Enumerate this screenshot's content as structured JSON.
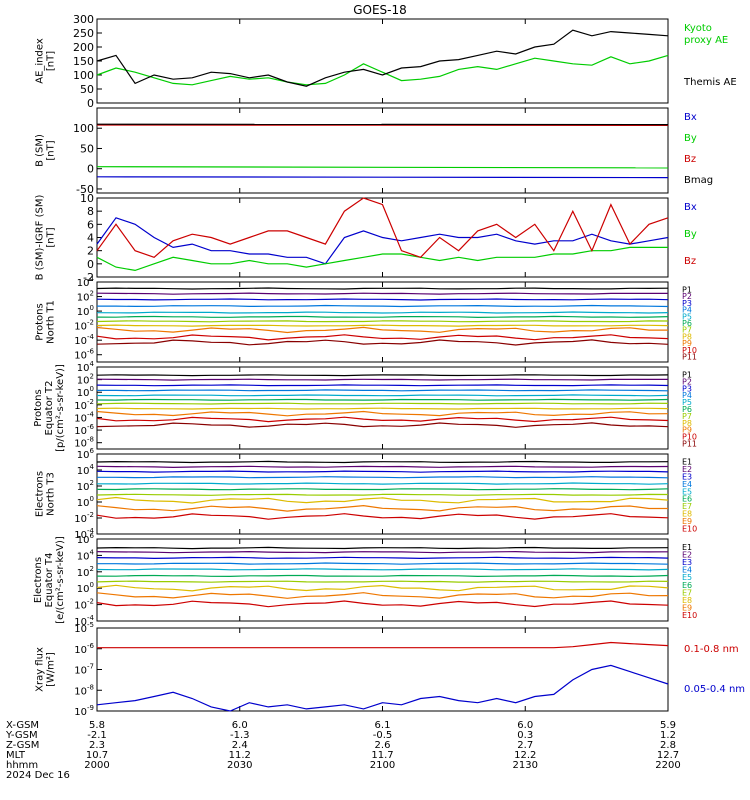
{
  "title": "GOES-18",
  "x_axis": {
    "ticks": [
      "2000",
      "2030",
      "2100",
      "2130",
      "2200"
    ],
    "rows": [
      {
        "label": "X-GSM",
        "values": [
          "5.8",
          "6.0",
          "6.1",
          "6.0",
          "5.9"
        ]
      },
      {
        "label": "Y-GSM",
        "values": [
          "-2.1",
          "-1.3",
          "-0.5",
          "0.3",
          "1.2"
        ]
      },
      {
        "label": "Z-GSM",
        "values": [
          "2.3",
          "2.4",
          "2.6",
          "2.7",
          "2.8"
        ]
      },
      {
        "label": "MLT",
        "values": [
          "10.7",
          "11.2",
          "11.7",
          "12.2",
          "12.7"
        ]
      },
      {
        "label": "hhmm",
        "values": [
          "2000",
          "2030",
          "2100",
          "2130",
          "2200"
        ]
      }
    ],
    "date": "2024 Dec 16"
  },
  "chart_data": [
    {
      "type": "line",
      "ylabel": [
        "AE_index",
        "[nT]"
      ],
      "ylim": [
        0,
        300
      ],
      "yticks": [
        "0",
        "50",
        "100",
        "150",
        "200",
        "250",
        "300"
      ],
      "x_minutes": [
        0,
        4,
        8,
        12,
        16,
        20,
        24,
        28,
        32,
        36,
        40,
        44,
        48,
        52,
        56,
        60,
        64,
        68,
        72,
        76,
        80,
        84,
        88,
        92,
        96,
        100,
        104,
        108,
        112,
        116,
        120
      ],
      "series": [
        {
          "name": "Kyoto proxy AE",
          "color": "#00cc00",
          "label_lines": [
            "Kyoto",
            "proxy AE"
          ],
          "values": [
            100,
            125,
            110,
            90,
            70,
            65,
            80,
            95,
            85,
            90,
            75,
            65,
            70,
            100,
            140,
            110,
            80,
            85,
            95,
            120,
            130,
            120,
            140,
            160,
            150,
            140,
            135,
            165,
            140,
            150,
            170
          ]
        },
        {
          "name": "Themis AE",
          "color": "#000000",
          "label_lines": [
            "Themis AE"
          ],
          "values": [
            150,
            170,
            70,
            100,
            85,
            90,
            110,
            105,
            90,
            100,
            75,
            60,
            90,
            110,
            120,
            100,
            125,
            130,
            150,
            155,
            170,
            185,
            175,
            200,
            210,
            260,
            240,
            255,
            250,
            245,
            240
          ]
        }
      ]
    },
    {
      "type": "line",
      "ylabel": [
        "B (SM)",
        "[nT]"
      ],
      "ylim": [
        -60,
        150
      ],
      "yticks": [
        "-50",
        "0",
        "50",
        "100"
      ],
      "yticks_values": [
        -50,
        0,
        50,
        100
      ],
      "x_minutes": [
        0,
        120
      ],
      "series": [
        {
          "name": "Bx",
          "color": "#0000cc",
          "values": [
            -20,
            -22
          ]
        },
        {
          "name": "By",
          "color": "#00cc00",
          "values": [
            5,
            2
          ]
        },
        {
          "name": "Bz",
          "color": "#cc0000",
          "values": [
            108,
            107
          ]
        },
        {
          "name": "Bmag",
          "color": "#000000",
          "values": [
            110,
            109
          ]
        }
      ]
    },
    {
      "type": "line",
      "ylabel": [
        "B (SM)-IGRF (SM)",
        "[nT]"
      ],
      "ylim": [
        -2,
        10
      ],
      "yticks": [
        "-2",
        "0",
        "2",
        "4",
        "6",
        "8",
        "10"
      ],
      "x_minutes": [
        0,
        4,
        8,
        12,
        16,
        20,
        24,
        28,
        32,
        36,
        40,
        44,
        48,
        52,
        56,
        60,
        64,
        68,
        72,
        76,
        80,
        84,
        88,
        92,
        96,
        100,
        104,
        108,
        112,
        116,
        120
      ],
      "series": [
        {
          "name": "Bx",
          "color": "#0000cc",
          "values": [
            3,
            7,
            6,
            4,
            2.5,
            3,
            2,
            2,
            1.5,
            1.5,
            1,
            1,
            0,
            4,
            5,
            4,
            3.5,
            4,
            4.5,
            4,
            4,
            4.5,
            3.5,
            3,
            3.5,
            3.5,
            4.5,
            3.5,
            3,
            3.5,
            4
          ]
        },
        {
          "name": "By",
          "color": "#00cc00",
          "values": [
            1,
            -0.5,
            -1,
            0,
            1,
            0.5,
            0,
            0,
            0.5,
            0,
            0,
            -0.5,
            0,
            0.5,
            1,
            1.5,
            1.5,
            1,
            0.5,
            1,
            0.5,
            1,
            1,
            1,
            1.5,
            1.5,
            2,
            2,
            2.5,
            2.5,
            2.5
          ]
        },
        {
          "name": "Bz",
          "color": "#cc0000",
          "values": [
            2,
            6,
            2,
            1,
            3.5,
            4.5,
            4,
            3,
            4,
            5,
            5,
            4,
            3,
            8,
            10,
            9,
            2,
            1,
            4,
            2,
            5,
            6,
            4,
            6,
            2,
            8,
            2,
            9,
            3,
            6,
            7
          ]
        }
      ]
    },
    {
      "type": "line",
      "ylabel": [
        "Protons",
        "North T1"
      ],
      "ylog": true,
      "ylim_exp": [
        -7,
        4
      ],
      "ytick_exps": [
        -6,
        -4,
        -2,
        0,
        2,
        4
      ],
      "channel_order": [
        "P1",
        "P2",
        "P3",
        "P4",
        "P5",
        "P6",
        "P7",
        "P8",
        "P9",
        "P10",
        "P11"
      ],
      "channels": [
        {
          "name": "P1",
          "color": "#000000",
          "value_exp": 3.1
        },
        {
          "name": "P2",
          "color": "#5a0070",
          "value_exp": 2.4
        },
        {
          "name": "P3",
          "color": "#0000cc",
          "value_exp": 1.6
        },
        {
          "name": "P4",
          "color": "#0077dd",
          "value_exp": 0.7
        },
        {
          "name": "P5",
          "color": "#00aacc",
          "value_exp": -0.2
        },
        {
          "name": "P6",
          "color": "#00aa55",
          "value_exp": -0.8
        },
        {
          "name": "P7",
          "color": "#99cc00",
          "value_exp": -1.4
        },
        {
          "name": "P8",
          "color": "#ddbb00",
          "value_exp": -2.0
        },
        {
          "name": "P9",
          "color": "#ee7700",
          "value_exp": -2.6
        },
        {
          "name": "P10",
          "color": "#cc0000",
          "value_exp": -3.6
        },
        {
          "name": "P11",
          "color": "#880000",
          "value_exp": -4.3
        }
      ]
    },
    {
      "type": "line",
      "ylabel": [
        "Protons",
        "Equator T2",
        "[p/(cm²-s-sr-keV)]"
      ],
      "ylog": true,
      "ylim_exp": [
        -9,
        4
      ],
      "ytick_exps": [
        -8,
        -6,
        -4,
        -2,
        0,
        2,
        4
      ],
      "channel_order": [
        "P1",
        "P2",
        "P3",
        "P4",
        "P5",
        "P6",
        "P7",
        "P8",
        "P9",
        "P10",
        "P11"
      ],
      "channels": [
        {
          "name": "P1",
          "color": "#000000",
          "value_exp": 2.7
        },
        {
          "name": "P2",
          "color": "#5a0070",
          "value_exp": 2.0
        },
        {
          "name": "P3",
          "color": "#0000cc",
          "value_exp": 1.1
        },
        {
          "name": "P4",
          "color": "#0077dd",
          "value_exp": 0.3
        },
        {
          "name": "P5",
          "color": "#00aacc",
          "value_exp": -0.5
        },
        {
          "name": "P6",
          "color": "#00aa55",
          "value_exp": -1.2
        },
        {
          "name": "P7",
          "color": "#99cc00",
          "value_exp": -1.8
        },
        {
          "name": "P8",
          "color": "#ddbb00",
          "value_exp": -2.6
        },
        {
          "name": "P9",
          "color": "#ee7700",
          "value_exp": -3.4
        },
        {
          "name": "P10",
          "color": "#cc0000",
          "value_exp": -4.3
        },
        {
          "name": "P11",
          "color": "#880000",
          "value_exp": -5.2
        }
      ]
    },
    {
      "type": "line",
      "ylabel": [
        "Electrons",
        "North T3"
      ],
      "ylog": true,
      "ylim_exp": [
        -4,
        6
      ],
      "ytick_exps": [
        -4,
        -2,
        0,
        2,
        4,
        6
      ],
      "channel_order": [
        "E1",
        "E2",
        "E3",
        "E4",
        "E5",
        "E6",
        "E7",
        "E8",
        "E9",
        "E10"
      ],
      "channels": [
        {
          "name": "E1",
          "color": "#000000",
          "value_exp": 5.0
        },
        {
          "name": "E2",
          "color": "#5a0070",
          "value_exp": 4.4
        },
        {
          "name": "E3",
          "color": "#0000cc",
          "value_exp": 3.8
        },
        {
          "name": "E4",
          "color": "#0077dd",
          "value_exp": 3.1
        },
        {
          "name": "E5",
          "color": "#00aacc",
          "value_exp": 2.3
        },
        {
          "name": "E6",
          "color": "#00aa55",
          "value_exp": 1.6
        },
        {
          "name": "E7",
          "color": "#99cc00",
          "value_exp": 0.9
        },
        {
          "name": "E8",
          "color": "#ddbb00",
          "value_exp": 0.2
        },
        {
          "name": "E9",
          "color": "#ee7700",
          "value_exp": -0.8
        },
        {
          "name": "E10",
          "color": "#cc0000",
          "value_exp": -1.8
        }
      ]
    },
    {
      "type": "line",
      "ylabel": [
        "Electrons",
        "Equator T4",
        "[e/(cm²-s-sr-keV)]"
      ],
      "ylog": true,
      "ylim_exp": [
        -4,
        6
      ],
      "ytick_exps": [
        -4,
        -2,
        0,
        2,
        4,
        6
      ],
      "channel_order": [
        "E1",
        "E2",
        "E3",
        "E4",
        "E5",
        "E6",
        "E7",
        "E8",
        "E9",
        "E10"
      ],
      "channels": [
        {
          "name": "E1",
          "color": "#000000",
          "value_exp": 4.9
        },
        {
          "name": "E2",
          "color": "#5a0070",
          "value_exp": 4.4
        },
        {
          "name": "E3",
          "color": "#0000cc",
          "value_exp": 3.7
        },
        {
          "name": "E4",
          "color": "#0077dd",
          "value_exp": 3.0
        },
        {
          "name": "E5",
          "color": "#00aacc",
          "value_exp": 2.3
        },
        {
          "name": "E6",
          "color": "#00aa55",
          "value_exp": 1.5
        },
        {
          "name": "E7",
          "color": "#99cc00",
          "value_exp": 0.8
        },
        {
          "name": "E8",
          "color": "#ddbb00",
          "value_exp": 0.0
        },
        {
          "name": "E9",
          "color": "#ee7700",
          "value_exp": -0.9
        },
        {
          "name": "E10",
          "color": "#cc0000",
          "value_exp": -1.9
        }
      ]
    },
    {
      "type": "line",
      "ylabel": [
        "Xray flux",
        "[W/m²]"
      ],
      "ylog": true,
      "ylim_exp": [
        -9,
        -5
      ],
      "ytick_exps": [
        -9,
        -8,
        -7,
        -6,
        -5
      ],
      "x_minutes": [
        0,
        4,
        8,
        12,
        16,
        20,
        24,
        28,
        32,
        36,
        40,
        44,
        48,
        52,
        56,
        60,
        64,
        68,
        72,
        76,
        80,
        84,
        88,
        92,
        96,
        100,
        104,
        108,
        112,
        116,
        120
      ],
      "series": [
        {
          "name": "0.1-0.8 nm",
          "color": "#cc0000",
          "values_exp": [
            -5.95,
            -5.95,
            -5.95,
            -5.95,
            -5.95,
            -5.95,
            -5.95,
            -5.95,
            -5.95,
            -5.95,
            -5.95,
            -5.95,
            -5.95,
            -5.95,
            -5.95,
            -5.95,
            -5.95,
            -5.95,
            -5.95,
            -5.95,
            -5.95,
            -5.95,
            -5.95,
            -5.95,
            -5.95,
            -5.9,
            -5.8,
            -5.7,
            -5.75,
            -5.8,
            -5.85
          ]
        },
        {
          "name": "0.05-0.4 nm",
          "color": "#0000cc",
          "values_exp": [
            -8.7,
            -8.6,
            -8.5,
            -8.3,
            -8.1,
            -8.4,
            -8.8,
            -9.0,
            -8.6,
            -8.8,
            -8.7,
            -8.9,
            -8.8,
            -8.7,
            -8.9,
            -8.6,
            -8.7,
            -8.4,
            -8.3,
            -8.5,
            -8.6,
            -8.4,
            -8.6,
            -8.3,
            -8.2,
            -7.5,
            -7.0,
            -6.8,
            -7.1,
            -7.4,
            -7.7
          ]
        }
      ]
    }
  ]
}
